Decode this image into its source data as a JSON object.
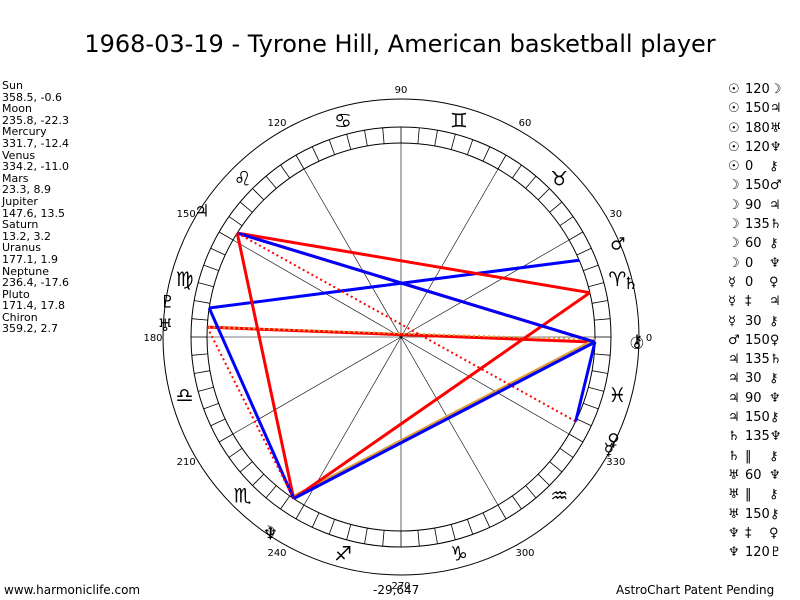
{
  "title": "1968-03-19 - Tyrone Hill, American basketball player",
  "planets": [
    {
      "name": "Sun",
      "pos": "358.5, -0.6"
    },
    {
      "name": "Moon",
      "pos": "235.8, -22.3"
    },
    {
      "name": "Mercury",
      "pos": "331.7, -12.4"
    },
    {
      "name": "Venus",
      "pos": "334.2, -11.0"
    },
    {
      "name": "Mars",
      "pos": "23.3, 8.9"
    },
    {
      "name": "Jupiter",
      "pos": "147.6, 13.5"
    },
    {
      "name": "Saturn",
      "pos": "13.2, 3.2"
    },
    {
      "name": "Uranus",
      "pos": "177.1, 1.9"
    },
    {
      "name": "Neptune",
      "pos": "236.4, -17.6"
    },
    {
      "name": "Pluto",
      "pos": "171.4, 17.8"
    },
    {
      "name": "Chiron",
      "pos": "359.2, 2.7"
    }
  ],
  "aspects": [
    {
      "p1": "☉",
      "a": "120",
      "p2": "☽"
    },
    {
      "p1": "☉",
      "a": "150",
      "p2": "♃"
    },
    {
      "p1": "☉",
      "a": "180",
      "p2": "♅"
    },
    {
      "p1": "☉",
      "a": "120",
      "p2": "♆"
    },
    {
      "p1": "☉",
      "a": "0",
      "p2": "⚷"
    },
    {
      "p1": "☽",
      "a": "150",
      "p2": "♂"
    },
    {
      "p1": "☽",
      "a": "90",
      "p2": "♃"
    },
    {
      "p1": "☽",
      "a": "135",
      "p2": "♄"
    },
    {
      "p1": "☽",
      "a": "60",
      "p2": "⚷"
    },
    {
      "p1": "☽",
      "a": "0",
      "p2": "♆"
    },
    {
      "p1": "☿",
      "a": "0",
      "p2": "♀"
    },
    {
      "p1": "☿",
      "a": "‡",
      "p2": "♃"
    },
    {
      "p1": "☿",
      "a": "30",
      "p2": "⚷"
    },
    {
      "p1": "♂",
      "a": "150",
      "p2": "♀"
    },
    {
      "p1": "♃",
      "a": "135",
      "p2": "♄"
    },
    {
      "p1": "♃",
      "a": "30",
      "p2": "⚷"
    },
    {
      "p1": "♃",
      "a": "90",
      "p2": "♆"
    },
    {
      "p1": "♃",
      "a": "150",
      "p2": "⚷"
    },
    {
      "p1": "♄",
      "a": "135",
      "p2": "♆"
    },
    {
      "p1": "♄",
      "a": "‖",
      "p2": "⚷"
    },
    {
      "p1": "♅",
      "a": "60",
      "p2": "♆"
    },
    {
      "p1": "♅",
      "a": "‖",
      "p2": "⚷"
    },
    {
      "p1": "♅",
      "a": "150",
      "p2": "⚷"
    },
    {
      "p1": "♆",
      "a": "‡",
      "p2": "♀"
    },
    {
      "p1": "♆",
      "a": "120",
      "p2": "♇"
    }
  ],
  "footer": {
    "left": "www.harmoniclife.com",
    "center": "-29,647",
    "right": "AstroChart Patent Pending"
  },
  "chart_data": {
    "type": "astrological-wheel",
    "degree_labels": [
      "0",
      "30",
      "60",
      "90",
      "120",
      "150",
      "180",
      "210",
      "240",
      "270",
      "300",
      "330"
    ],
    "sign_glyphs": [
      "♈",
      "♉",
      "♊",
      "♋",
      "♌",
      "♍",
      "♎",
      "♏",
      "♐",
      "♑",
      "♒",
      "♓"
    ],
    "bodies": [
      {
        "name": "Sun",
        "glyph": "☉",
        "longitude": 358.5
      },
      {
        "name": "Moon",
        "glyph": "☽",
        "longitude": 235.8
      },
      {
        "name": "Mercury",
        "glyph": "☿",
        "longitude": 331.7
      },
      {
        "name": "Venus",
        "glyph": "♀",
        "longitude": 334.2
      },
      {
        "name": "Mars",
        "glyph": "♂",
        "longitude": 23.3
      },
      {
        "name": "Jupiter",
        "glyph": "♃",
        "longitude": 147.6
      },
      {
        "name": "Saturn",
        "glyph": "♄",
        "longitude": 13.2
      },
      {
        "name": "Uranus",
        "glyph": "♅",
        "longitude": 177.1
      },
      {
        "name": "Neptune",
        "glyph": "♆",
        "longitude": 236.4
      },
      {
        "name": "Pluto",
        "glyph": "♇",
        "longitude": 171.4
      },
      {
        "name": "Chiron",
        "glyph": "⚷",
        "longitude": 359.2
      }
    ],
    "aspect_lines": [
      {
        "from": 358.5,
        "to": 147.6,
        "color": "#ff0000",
        "style": "solid"
      },
      {
        "from": 358.5,
        "to": 177.1,
        "color": "#ff0000",
        "style": "solid"
      },
      {
        "from": 358.5,
        "to": 236.4,
        "color": "#0000ff",
        "style": "solid"
      },
      {
        "from": 358.5,
        "to": 235.8,
        "color": "#ff0000",
        "style": "solid"
      },
      {
        "from": 359.2,
        "to": 235.8,
        "color": "#e0a030",
        "style": "solid"
      },
      {
        "from": 359.2,
        "to": 177.1,
        "color": "#e0a030",
        "style": "dotted"
      },
      {
        "from": 23.3,
        "to": 171.4,
        "color": "#0000ff",
        "style": "solid"
      },
      {
        "from": 13.2,
        "to": 147.6,
        "color": "#ff0000",
        "style": "solid"
      },
      {
        "from": 13.2,
        "to": 236.4,
        "color": "#ff0000",
        "style": "solid"
      },
      {
        "from": 147.6,
        "to": 236.4,
        "color": "#ff0000",
        "style": "solid"
      },
      {
        "from": 147.6,
        "to": 358.5,
        "color": "#0000ff",
        "style": "solid"
      },
      {
        "from": 147.6,
        "to": 334.2,
        "color": "#ff0000",
        "style": "dotted"
      },
      {
        "from": 171.4,
        "to": 236.4,
        "color": "#0000ff",
        "style": "solid"
      },
      {
        "from": 177.1,
        "to": 236.4,
        "color": "#ff0000",
        "style": "dotted"
      },
      {
        "from": 358.5,
        "to": 334.2,
        "color": "#0000ff",
        "style": "solid"
      },
      {
        "from": 236.4,
        "to": 358.5,
        "color": "#0000ff",
        "style": "solid"
      }
    ]
  }
}
